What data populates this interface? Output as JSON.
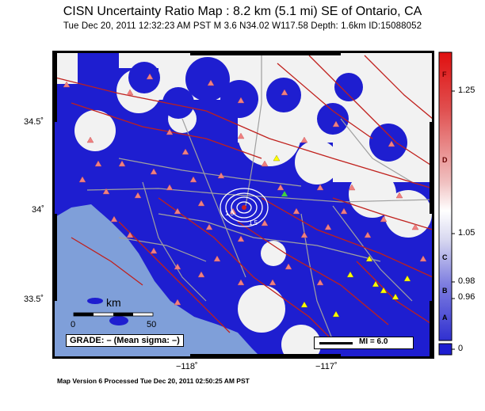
{
  "header": {
    "title": "CISN Uncertainty Ratio Map : 8.2 km (5.1 mi) SE of Ontario, CA",
    "subtitle": "Tue Dec 20, 2011 12:32:23 AM PST   M 3.6   N34.02 W117.58   Depth: 1.6km   ID:15088052"
  },
  "axes": {
    "lat_labels": [
      "34.5˚",
      "34˚",
      "33.5˚"
    ],
    "lon_labels": [
      "−118˚",
      "−117˚"
    ]
  },
  "scale_bar": {
    "unit": "km",
    "start": "0",
    "end": "50"
  },
  "grade_box": {
    "text": "GRADE: – (Mean sigma: –)"
  },
  "mmi_legend": {
    "text": "MI = 6.0"
  },
  "colorbar": {
    "values": [
      "1.25",
      "1.05",
      "0.98",
      "0.96",
      "0"
    ],
    "grades": [
      "F",
      "D",
      "C",
      "B",
      "A"
    ]
  },
  "footer": {
    "text": "Map Version 6 Processed Tue Dec 20, 2011 02:50:25 AM PST"
  },
  "colors": {
    "ocean": "#7f9fd9",
    "land_blue": "#1e1ed0",
    "white_zone": "#f2f2f2",
    "fault": "#c0201c",
    "road": "#a0a0a0",
    "station": "#f08080",
    "station_yellow": "#ffff00"
  }
}
